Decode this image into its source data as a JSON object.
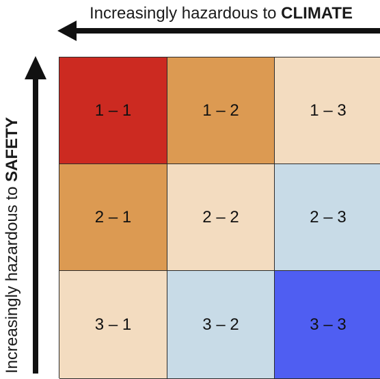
{
  "header": {
    "top_label_prefix": "Increasingly hazardous to ",
    "top_label_strong": "CLIMATE",
    "left_label_prefix": "Increasingly hazardous to ",
    "left_label_strong": "SAFETY"
  },
  "matrix": {
    "rows": [
      [
        {
          "label": "1 – 1",
          "color": "#cc2a21"
        },
        {
          "label": "1 – 2",
          "color": "#dc9a52"
        },
        {
          "label": "1 – 3",
          "color": "#f3dcc0"
        }
      ],
      [
        {
          "label": "2 – 1",
          "color": "#dc9a52"
        },
        {
          "label": "2 – 2",
          "color": "#f3dcc0"
        },
        {
          "label": "2 – 3",
          "color": "#c8dbe7"
        }
      ],
      [
        {
          "label": "3 – 1",
          "color": "#f3dcc0"
        },
        {
          "label": "3 – 2",
          "color": "#c8dbe7"
        },
        {
          "label": "3 – 3",
          "color": "#4f5ef2"
        }
      ]
    ]
  },
  "colors": {
    "arrow": "#111111",
    "grid_line": "#2a2a2a"
  }
}
